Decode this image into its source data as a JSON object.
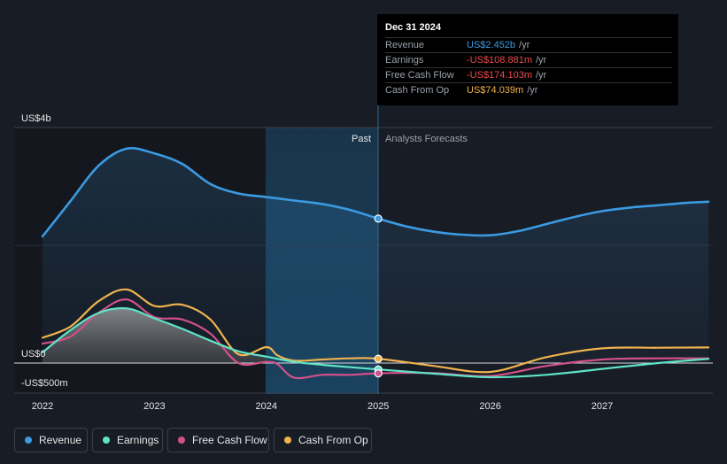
{
  "tooltip": {
    "date": "Dec 31 2024",
    "rows": [
      {
        "label": "Revenue",
        "value": "US$2.452b",
        "unit": "/yr",
        "color": "#3b9ae1"
      },
      {
        "label": "Earnings",
        "value": "-US$108.881m",
        "unit": "/yr",
        "color": "#ef4a4a"
      },
      {
        "label": "Free Cash Flow",
        "value": "-US$174.103m",
        "unit": "/yr",
        "color": "#ef4a4a"
      },
      {
        "label": "Cash From Op",
        "value": "US$74.039m",
        "unit": "/yr",
        "color": "#f0b34f"
      }
    ]
  },
  "legend": [
    {
      "label": "Revenue",
      "color": "#3b9ae1"
    },
    {
      "label": "Earnings",
      "color": "#5fe3c6"
    },
    {
      "label": "Free Cash Flow",
      "color": "#d2508b"
    },
    {
      "label": "Cash From Op",
      "color": "#f0b34f"
    }
  ],
  "chart_data": {
    "type": "line",
    "title": "",
    "unit": "USD millions",
    "y_labels": {
      "top": "US$4b",
      "zero": "US$0",
      "bottom": "-US$500m"
    },
    "ylim": [
      -500,
      4000
    ],
    "xlim": [
      2021.9,
      2027.95
    ],
    "x_ticks": [
      2022,
      2023,
      2024,
      2025,
      2026,
      2027
    ],
    "x_tick_labels": [
      "2022",
      "2023",
      "2024",
      "2025",
      "2026",
      "2027"
    ],
    "past_label": "Past",
    "forecast_label": "Analysts Forecasts",
    "highlight_from": 2024.0,
    "divider_x": 2025.0,
    "series": [
      {
        "name": "Revenue",
        "color": "#3b9ae1",
        "x": [
          2022.0,
          2022.25,
          2022.5,
          2022.75,
          2023.0,
          2023.25,
          2023.5,
          2023.75,
          2024.0,
          2024.25,
          2024.5,
          2024.75,
          2025.0,
          2025.25,
          2025.5,
          2025.75,
          2026.0,
          2026.25,
          2026.5,
          2026.75,
          2027.0,
          2027.25,
          2027.5,
          2027.75,
          2027.95
        ],
        "y": [
          2150,
          2750,
          3350,
          3640,
          3560,
          3380,
          3040,
          2880,
          2820,
          2760,
          2700,
          2600,
          2452,
          2320,
          2230,
          2180,
          2170,
          2240,
          2360,
          2480,
          2580,
          2640,
          2680,
          2720,
          2740
        ]
      },
      {
        "name": "Earnings",
        "color": "#5fe3c6",
        "x": [
          2022.0,
          2022.25,
          2022.5,
          2022.75,
          2023.0,
          2023.25,
          2023.5,
          2023.75,
          2024.0,
          2024.25,
          2024.5,
          2024.75,
          2025.0,
          2025.5,
          2026.0,
          2026.5,
          2027.0,
          2027.5,
          2027.95
        ],
        "y": [
          180,
          560,
          850,
          930,
          760,
          580,
          380,
          200,
          110,
          20,
          -30,
          -70,
          -108.881,
          -180,
          -240,
          -200,
          -100,
          0,
          70
        ]
      },
      {
        "name": "Free Cash Flow",
        "color": "#d2508b",
        "x": [
          2022.0,
          2022.25,
          2022.5,
          2022.75,
          2023.0,
          2023.25,
          2023.5,
          2023.75,
          2024.0,
          2024.1,
          2024.25,
          2024.5,
          2024.75,
          2025.0,
          2025.5,
          2026.0,
          2026.5,
          2027.0,
          2027.5,
          2027.95
        ],
        "y": [
          330,
          450,
          850,
          1080,
          780,
          740,
          500,
          0,
          20,
          -20,
          -250,
          -200,
          -200,
          -174.103,
          -170,
          -220,
          -50,
          60,
          80,
          80
        ]
      },
      {
        "name": "Cash From Op",
        "color": "#f0b34f",
        "x": [
          2022.0,
          2022.25,
          2022.5,
          2022.75,
          2023.0,
          2023.25,
          2023.5,
          2023.75,
          2024.0,
          2024.1,
          2024.25,
          2024.5,
          2024.75,
          2025.0,
          2025.5,
          2026.0,
          2026.5,
          2027.0,
          2027.5,
          2027.95
        ],
        "y": [
          430,
          620,
          1050,
          1250,
          970,
          990,
          740,
          150,
          270,
          130,
          40,
          60,
          80,
          74.039,
          -50,
          -150,
          100,
          250,
          260,
          265
        ]
      }
    ],
    "markers": [
      {
        "series": "Revenue",
        "x": 2025.0,
        "y": 2452
      },
      {
        "series": "Cash From Op",
        "x": 2025.0,
        "y": 74.039
      },
      {
        "series": "Earnings",
        "x": 2025.0,
        "y": -108.881
      },
      {
        "series": "Free Cash Flow",
        "x": 2025.0,
        "y": -174.103
      }
    ]
  }
}
